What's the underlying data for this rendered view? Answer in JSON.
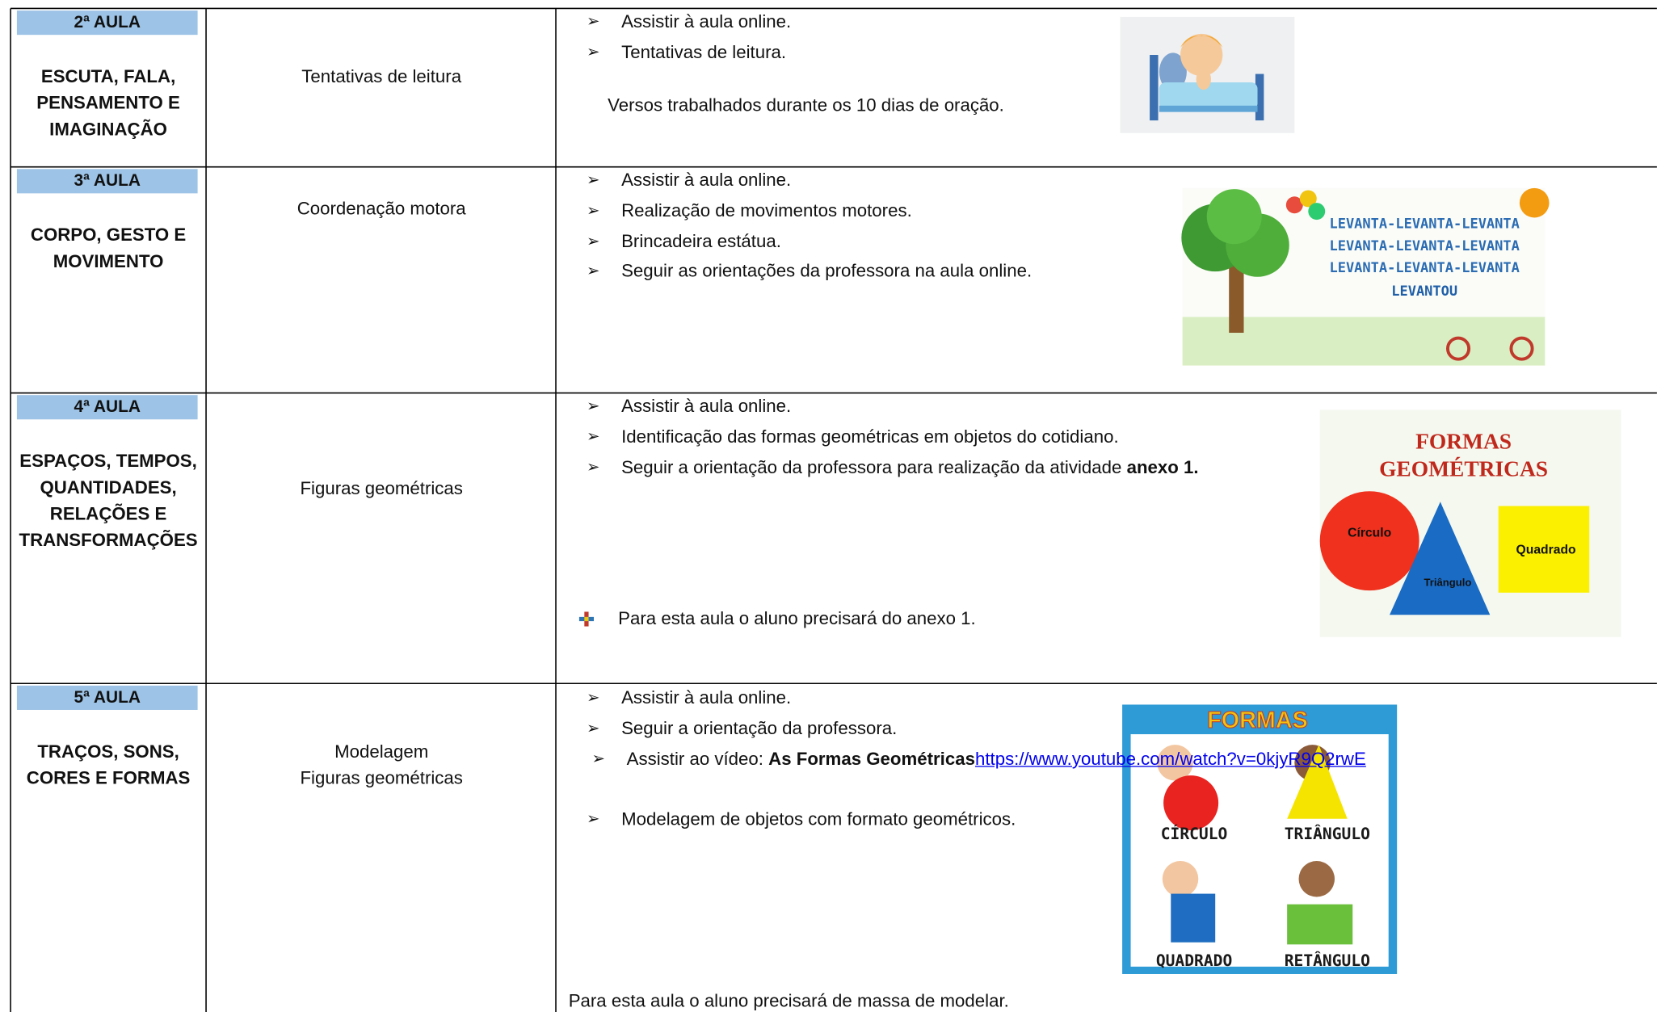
{
  "rows": [
    {
      "label": "2ª AULA",
      "title": "ESCUTA, FALA, PENSAMENTO E IMAGINAÇÃO",
      "topic": [
        "Tentativas de leitura"
      ],
      "items": [
        {
          "text": "Assistir à aula online."
        },
        {
          "text": "Tentativas de leitura."
        }
      ],
      "note": "Versos trabalhados durante os 10 dias de oração."
    },
    {
      "label": "3ª AULA",
      "title": "CORPO, GESTO E MOVIMENTO",
      "topic": [
        "Coordenação motora"
      ],
      "items": [
        {
          "text": "Assistir à aula online."
        },
        {
          "text": "Realização de movimentos motores."
        },
        {
          "text": "Brincadeira estátua."
        },
        {
          "text": "Seguir as orientações da professora na aula online."
        }
      ],
      "image_text": [
        "LEVANTA-LEVANTA-LEVANTA",
        "LEVANTA-LEVANTA-LEVANTA",
        "LEVANTA-LEVANTA-LEVANTA",
        "LEVANTOU"
      ]
    },
    {
      "label": "4ª AULA",
      "title": "ESPAÇOS, TEMPOS, QUANTIDADES, RELAÇÕES E TRANSFORMAÇÕES",
      "topic": [
        "Figuras geométricas"
      ],
      "items": [
        {
          "text": "Assistir à aula online."
        },
        {
          "text": "Identificação das formas geométricas em objetos do cotidiano."
        },
        {
          "text": "Seguir a orientação da professora para realização da atividade ",
          "bold": "anexo 1."
        }
      ],
      "note": "Para esta aula o aluno precisará do anexo 1.",
      "image_text": [
        "FORMAS",
        "GEOMÉTRICAS",
        "Círculo",
        "Triângulo",
        "Quadrado"
      ]
    },
    {
      "label": "5ª AULA",
      "title": "TRAÇOS, SONS, CORES E FORMAS",
      "topic": [
        "Modelagem",
        "Figuras geométricas"
      ],
      "items": [
        {
          "text": "Assistir à aula online."
        },
        {
          "text": "Seguir a orientação da professora."
        },
        {
          "text": "Assistir ao vídeo: ",
          "bold": "As Formas Geométricas",
          "link": "https://www.youtube.com/watch?v=0kjyR9Q2rwE"
        },
        {
          "text": "Modelagem de objetos com formato geométricos."
        }
      ],
      "note": "Para esta aula o aluno precisará de massa de modelar.",
      "image_text": [
        "FORMAS",
        "CÍRCULO",
        "TRIÂNGULO",
        "QUADRADO",
        "RETÂNGULO"
      ]
    }
  ]
}
